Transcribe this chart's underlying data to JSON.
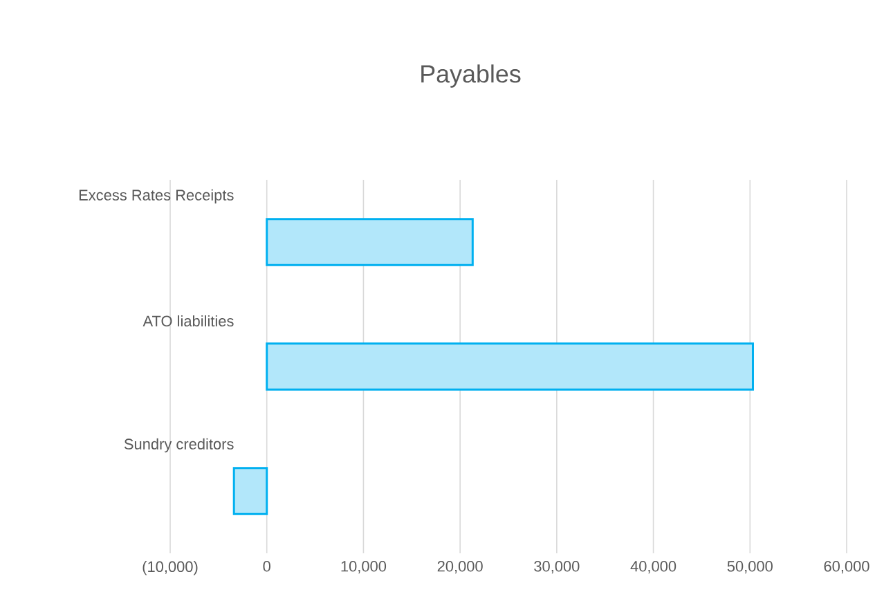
{
  "chart_data": {
    "type": "bar",
    "orientation": "horizontal",
    "title": "Payables",
    "categories": [
      "Excess Rates Receipts",
      "ATO liabilities",
      "Sundry creditors"
    ],
    "values": [
      21300,
      50300,
      -3400
    ],
    "color": "#00b0f0",
    "xlim": [
      -10000,
      60000
    ],
    "xticks": [
      {
        "value": -10000,
        "label": "(10,000)"
      },
      0,
      {
        "value": 10000,
        "label": "10,000"
      },
      {
        "value": 20000,
        "label": "20,000"
      },
      {
        "value": 30000,
        "label": "30,000"
      },
      {
        "value": 40000,
        "label": "40,000"
      },
      {
        "value": 50000,
        "label": "50,000"
      },
      {
        "value": 60000,
        "label": "60,000"
      }
    ],
    "grid": "x"
  }
}
